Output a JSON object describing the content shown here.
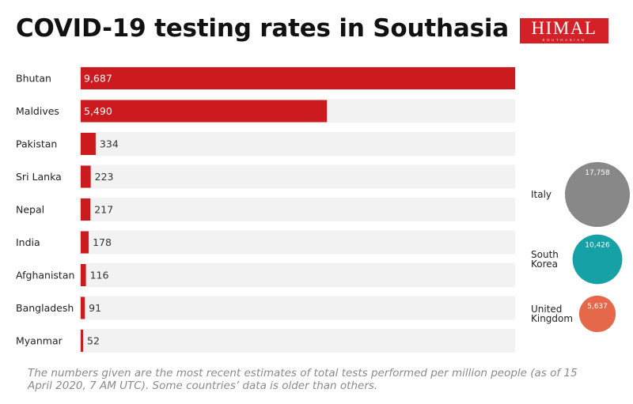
{
  "logo": {
    "text": "HIMAL",
    "subtitle": "SOUTHASIAN"
  },
  "colors": {
    "bar": "#cc1b1e",
    "track": "#f2f2f2",
    "italy": "#888888",
    "south_korea": "#16a1a6",
    "united_kingdom": "#e5684b"
  },
  "chart_data": {
    "type": "bar",
    "orientation": "horizontal",
    "title": "COVID-19 testing rates in Southasia",
    "categories": [
      "Bhutan",
      "Maldives",
      "Pakistan",
      "Sri Lanka",
      "Nepal",
      "India",
      "Afghanistan",
      "Bangladesh",
      "Myanmar"
    ],
    "values": [
      9687,
      5490,
      334,
      223,
      217,
      178,
      116,
      91,
      52
    ],
    "value_labels": [
      "9,687",
      "5,490",
      "334",
      "223",
      "217",
      "178",
      "116",
      "91",
      "52"
    ],
    "xlim": [
      0,
      9687
    ],
    "grid": false,
    "comparison": {
      "type": "bubble",
      "items": [
        {
          "lines": [
            "Italy"
          ],
          "value": 17758,
          "value_label": "17,758",
          "color": "#888888"
        },
        {
          "lines": [
            "South",
            "Korea"
          ],
          "value": 10426,
          "value_label": "10,426",
          "color": "#16a1a6"
        },
        {
          "lines": [
            "United",
            "Kingdom"
          ],
          "value": 5637,
          "value_label": "5,637",
          "color": "#e5684b"
        }
      ]
    }
  },
  "footnote": "The numbers given are the most recent estimates of total tests performed per million people (as of 15 April 2020, 7 AM  UTC).  Some countries’ data is older than others."
}
